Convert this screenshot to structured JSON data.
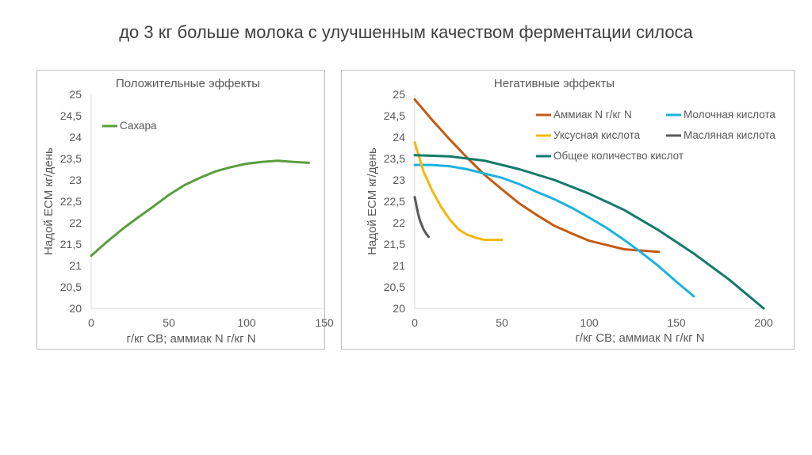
{
  "page_title": "до 3 кг больше молока с улучшенным качеством ферментации силоса",
  "chart_data": [
    {
      "type": "line",
      "title": "Положительные эффекты",
      "xlabel": "г/кг СВ; аммиак N г/кг N",
      "ylabel": "Надой ECM кг/день",
      "xlim": [
        0,
        150
      ],
      "ylim": [
        20,
        25
      ],
      "x_ticks": [
        0,
        50,
        100,
        150
      ],
      "y_ticks": [
        20,
        20.5,
        21,
        21.5,
        22,
        22.5,
        23,
        23.5,
        24,
        24.5,
        25
      ],
      "y_tick_labels": [
        "20",
        "20,5",
        "21",
        "21,5",
        "22",
        "22,5",
        "23",
        "23,5",
        "24",
        "24,5",
        "25"
      ],
      "grid": false,
      "legend_position": "top-left",
      "series": [
        {
          "name": "Сахара",
          "color": "#5a9e3c",
          "x": [
            0,
            10,
            20,
            30,
            40,
            50,
            60,
            70,
            80,
            90,
            100,
            110,
            120,
            130,
            140
          ],
          "y": [
            21.23,
            21.55,
            21.85,
            22.12,
            22.38,
            22.65,
            22.88,
            23.05,
            23.2,
            23.3,
            23.38,
            23.42,
            23.45,
            23.42,
            23.4
          ]
        }
      ]
    },
    {
      "type": "line",
      "title": "Негативные эффекты",
      "xlabel": "г/кг СВ; аммиак N г/кг N",
      "ylabel": "Надой ECM кг/день",
      "xlim": [
        0,
        200
      ],
      "ylim": [
        20,
        25
      ],
      "x_ticks": [
        0,
        50,
        100,
        150,
        200
      ],
      "y_ticks": [
        20,
        20.5,
        21,
        21.5,
        22,
        22.5,
        23,
        23.5,
        24,
        24.5,
        25
      ],
      "y_tick_labels": [
        "20",
        "20,5",
        "21",
        "21,5",
        "22",
        "22,5",
        "23",
        "23,5",
        "24",
        "24,5",
        "25"
      ],
      "grid": false,
      "legend_position": "top-right",
      "series": [
        {
          "name": "Аммиак N г/кг N",
          "color": "#c55a11",
          "x": [
            0,
            10,
            20,
            30,
            40,
            50,
            60,
            70,
            80,
            90,
            100,
            110,
            120,
            130,
            140
          ],
          "y": [
            24.88,
            24.4,
            23.95,
            23.52,
            23.12,
            22.78,
            22.45,
            22.18,
            21.93,
            21.75,
            21.58,
            21.48,
            21.38,
            21.35,
            21.32
          ]
        },
        {
          "name": "Молочная кислота",
          "color": "#1ab3e0",
          "x": [
            0,
            10,
            20,
            30,
            40,
            50,
            60,
            70,
            80,
            90,
            100,
            110,
            120,
            130,
            140,
            150,
            160
          ],
          "y": [
            23.35,
            23.35,
            23.32,
            23.25,
            23.15,
            23.05,
            22.9,
            22.72,
            22.55,
            22.35,
            22.12,
            21.88,
            21.6,
            21.3,
            20.98,
            20.62,
            20.28
          ]
        },
        {
          "name": "Уксусная кислота",
          "color": "#f2b80c",
          "x": [
            0,
            5,
            10,
            15,
            20,
            25,
            30,
            35,
            40,
            45,
            50
          ],
          "y": [
            23.88,
            23.2,
            22.75,
            22.38,
            22.08,
            21.85,
            21.72,
            21.65,
            21.6,
            21.6,
            21.6
          ]
        },
        {
          "name": "Масляная кислота",
          "color": "#595959",
          "x": [
            0,
            1,
            2,
            3,
            4,
            5,
            6,
            7,
            8
          ],
          "y": [
            22.6,
            22.4,
            22.2,
            22.05,
            21.95,
            21.85,
            21.78,
            21.72,
            21.67
          ]
        },
        {
          "name": "Общее количество кислот",
          "color": "#127a6b",
          "x": [
            0,
            20,
            40,
            60,
            80,
            100,
            120,
            140,
            160,
            180,
            200
          ],
          "y": [
            23.58,
            23.55,
            23.45,
            23.25,
            23.0,
            22.68,
            22.3,
            21.82,
            21.28,
            20.68,
            20.0
          ]
        }
      ]
    }
  ]
}
